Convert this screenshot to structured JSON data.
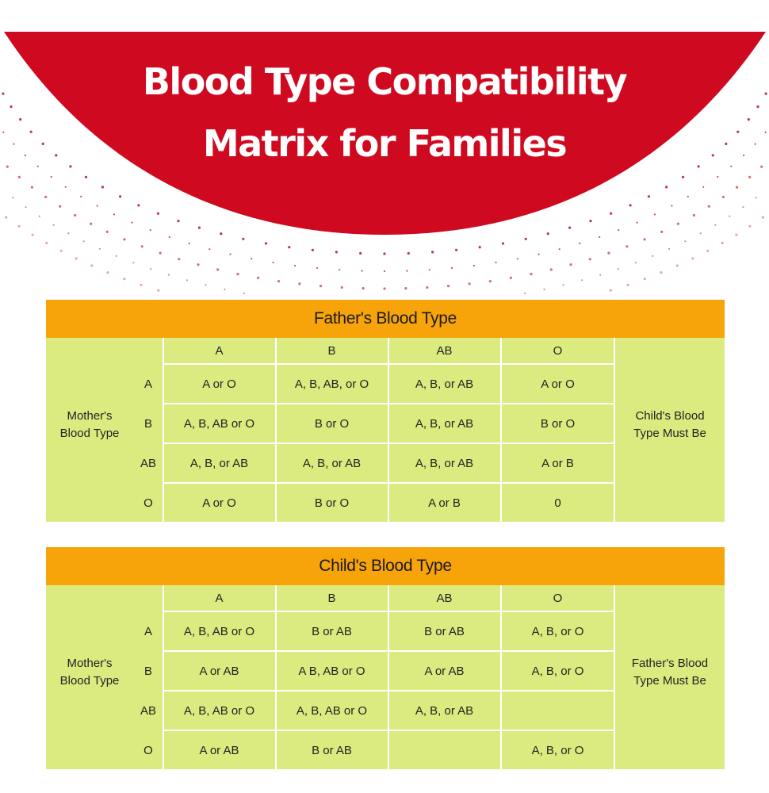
{
  "title": {
    "line1": "Blood Type Compatibility",
    "line2": "Matrix for Families"
  },
  "colors": {
    "title_band": "#cf0a20",
    "banner": "#f7a30a",
    "cell": "#dceb7f",
    "dots": "#b5121b"
  },
  "tables": [
    {
      "banner": "Father's Blood Type",
      "row_label": [
        "Mother's",
        "Blood Type"
      ],
      "side_label": [
        "Child's Blood",
        "Type Must Be"
      ],
      "columns": [
        "A",
        "B",
        "AB",
        "O"
      ],
      "rows": [
        {
          "label": "A",
          "cells": [
            "A or O",
            "A, B, AB, or O",
            "A, B, or AB",
            "A or O"
          ]
        },
        {
          "label": "B",
          "cells": [
            "A, B, AB or O",
            "B or O",
            "A, B, or AB",
            "B or O"
          ]
        },
        {
          "label": "AB",
          "cells": [
            "A, B, or AB",
            "A, B, or AB",
            "A, B, or AB",
            "A or B"
          ]
        },
        {
          "label": "O",
          "cells": [
            "A or O",
            "B or O",
            "A or B",
            "0"
          ]
        }
      ]
    },
    {
      "banner": "Child's Blood Type",
      "row_label": [
        "Mother's",
        "Blood Type"
      ],
      "side_label": [
        "Father's Blood",
        "Type Must Be"
      ],
      "columns": [
        "A",
        "B",
        "AB",
        "O"
      ],
      "rows": [
        {
          "label": "A",
          "cells": [
            "A, B, AB or O",
            "B or AB",
            "B or AB",
            "A, B, or O"
          ]
        },
        {
          "label": "B",
          "cells": [
            "A or AB",
            "A B, AB or O",
            "A or AB",
            "A, B, or O"
          ]
        },
        {
          "label": "AB",
          "cells": [
            "A, B, AB or O",
            "A, B, AB or O",
            "A, B, or AB",
            ""
          ]
        },
        {
          "label": "O",
          "cells": [
            "A or AB",
            "B or AB",
            "",
            "A, B, or O"
          ]
        }
      ]
    }
  ]
}
